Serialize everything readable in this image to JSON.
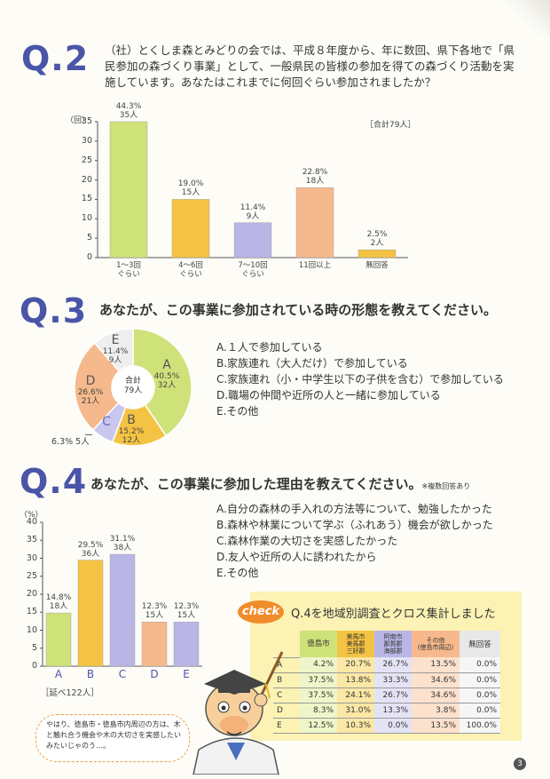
{
  "q2": {
    "label": "Q.2",
    "text": "（社）とくしま森とみどりの会では、平成８年度から、年に数回、県下各地で「県民参加の森づくり事業」として、一般県民の皆様の参加を得ての森づくり活動を実施しています。あなたはこれまでに何回ぐらい参加されましたか？",
    "unit": "（回）",
    "total": "［合計79人］",
    "chart_data": {
      "type": "bar",
      "categories": [
        "1〜3回\nぐらい",
        "4〜6回\nぐらい",
        "7〜10回\nぐらい",
        "11回以上",
        "無回答"
      ],
      "values": [
        35,
        15,
        9,
        18,
        2
      ],
      "percents": [
        "44.3%",
        "19.0%",
        "11.4%",
        "22.8%",
        "2.5%"
      ],
      "counts": [
        "35人",
        "15人",
        "9人",
        "18人",
        "2人"
      ],
      "colors": [
        "#cfe27a",
        "#f4c343",
        "#b9b6e6",
        "#f6b98d",
        "#f4c343"
      ],
      "ylim": [
        0,
        35
      ],
      "yticks": [
        "0",
        "5",
        "10",
        "15",
        "20",
        "25",
        "30",
        "35"
      ]
    }
  },
  "q3": {
    "label": "Q.3",
    "question": "あなたが、この事業に参加されている時の形態を教えてください。",
    "center_title": "合計",
    "center_value": "79人",
    "chart_data": {
      "type": "pie",
      "slices": [
        {
          "key": "A",
          "percent": 40.5,
          "count": "32人",
          "color": "#cfe27a"
        },
        {
          "key": "B",
          "percent": 15.2,
          "count": "12人",
          "color": "#f4c343"
        },
        {
          "key": "C",
          "percent": 6.3,
          "count": "5人",
          "color": "#c9c7ee"
        },
        {
          "key": "D",
          "percent": 26.6,
          "count": "21人",
          "color": "#f6b98d"
        },
        {
          "key": "E",
          "percent": 11.4,
          "count": "9人",
          "color": "#eeeeee"
        }
      ]
    },
    "slice_labels": {
      "a": {
        "key": "A",
        "pct": "40.5%",
        "cnt": "32人"
      },
      "b": {
        "key": "B",
        "pct": "15.2%",
        "cnt": "12人"
      },
      "c": {
        "key": "C",
        "ext": "6.3%  5人"
      },
      "d": {
        "key": "D",
        "pct": "26.6%",
        "cnt": "21人"
      },
      "e": {
        "key": "E",
        "pct": "11.4%",
        "cnt": "9人"
      }
    },
    "options": [
      "A.１人で参加している",
      "B.家族連れ（大人だけ）で参加している",
      "C.家族連れ（小・中学生以下の子供を含む）で参加している",
      "D.職場の仲間や近所の人と一緒に参加している",
      "E.その他"
    ]
  },
  "q4": {
    "label": "Q.4",
    "question": "あなたが、この事業に参加した理由を教えてください。",
    "note": "※複数回答あり",
    "unit": "（%）",
    "total": "［延べ122人］",
    "chart_data": {
      "type": "bar",
      "categories": [
        "A",
        "B",
        "C",
        "D",
        "E"
      ],
      "values": [
        14.8,
        29.5,
        31.1,
        12.3,
        12.3
      ],
      "percents": [
        "14.8%",
        "29.5%",
        "31.1%",
        "12.3%",
        "12.3%"
      ],
      "counts": [
        "18人",
        "36人",
        "38人",
        "15人",
        "15人"
      ],
      "colors": [
        "#cfe27a",
        "#f4c343",
        "#b9b6e6",
        "#f6b98d",
        "#b9b6e6"
      ],
      "ylim": [
        0,
        40
      ],
      "yticks": [
        "0",
        "5",
        "10",
        "15",
        "20",
        "25",
        "30",
        "35",
        "40"
      ]
    },
    "options": [
      "A.自分の森林の手入れの方法等について、勉強したかった",
      "B.森林や林業について学ぶ（ふれあう）機会が欲しかった",
      "C.森林作業の大切さを実感したかった",
      "D.友人や近所の人に誘われたから",
      "E.その他"
    ]
  },
  "check": {
    "badge": "check",
    "title": "Q.4を地域別調査とクロス集計しました",
    "headers": [
      "徳島市",
      "美馬市\n美馬郡\n三好郡",
      "阿南市\n那賀郡\n海部郡",
      "その他\n(徳島市周辺)",
      "無回答"
    ],
    "header_colors": [
      "#cfe27a",
      "#f4c343",
      "#b9b6e6",
      "#f6b98d",
      "#e8e8e8"
    ],
    "rows": [
      {
        "key": "A",
        "values": [
          "4.2%",
          "20.7%",
          "26.7%",
          "13.5%",
          "0.0%"
        ]
      },
      {
        "key": "B",
        "values": [
          "37.5%",
          "13.8%",
          "33.3%",
          "34.6%",
          "0.0%"
        ]
      },
      {
        "key": "C",
        "values": [
          "37.5%",
          "24.1%",
          "26.7%",
          "34.6%",
          "0.0%"
        ]
      },
      {
        "key": "D",
        "values": [
          "8.3%",
          "31.0%",
          "13.3%",
          "3.8%",
          "0.0%"
        ]
      },
      {
        "key": "E",
        "values": [
          "12.5%",
          "10.3%",
          "0.0%",
          "13.5%",
          "100.0%"
        ]
      }
    ]
  },
  "speech": "やはり、徳島市・徳島市内周辺の方は、木と触れ合う機会や木の大切さを実感したいみたいじゃのう…。",
  "page_number": "3"
}
